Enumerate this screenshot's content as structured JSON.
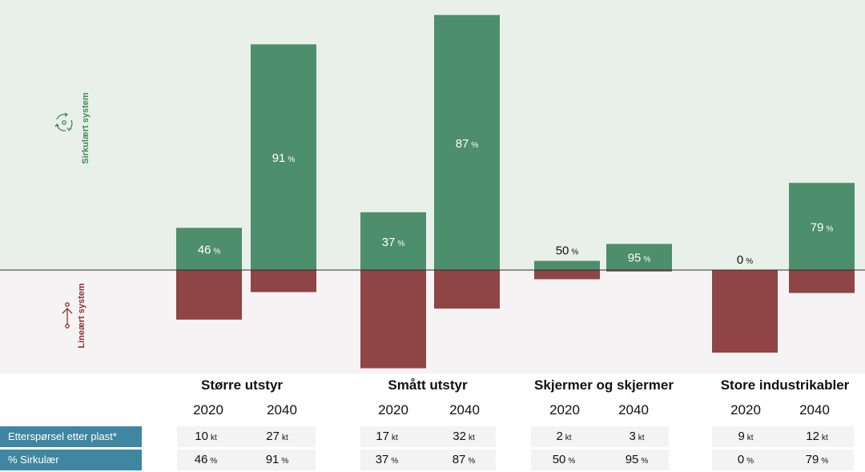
{
  "axis": {
    "top_label": "Sirkulært system",
    "bottom_label": "Lineært system"
  },
  "colors": {
    "circular": "#4d8e6c",
    "linear": "#8f4446",
    "top_bg": "#e9efe9",
    "bottom_bg": "#f6f3f4",
    "row_label_bg": "#3f86a0"
  },
  "icons": {
    "top": "recycle-circle-icon",
    "bottom": "linear-arrow-icon"
  },
  "chart_data": {
    "type": "bar",
    "stacked": "diverging",
    "categories": [
      "Større utstyr",
      "Smått utstyr",
      "Skjermer og skjermer",
      "Store industrikabler"
    ],
    "years": [
      "2020",
      "2040"
    ],
    "series": [
      {
        "name": "Sirkulær",
        "values": [
          [
            4.6,
            24.6
          ],
          [
            6.3,
            27.8
          ],
          [
            1.0,
            2.85
          ],
          [
            0.0,
            9.5
          ]
        ]
      },
      {
        "name": "Lineær",
        "values": [
          [
            5.4,
            2.4
          ],
          [
            10.7,
            4.2
          ],
          [
            1.0,
            0.15
          ],
          [
            9.0,
            2.5
          ]
        ]
      }
    ],
    "bar_labels": [
      [
        "46 %",
        "91 %"
      ],
      [
        "37 %",
        "87 %"
      ],
      [
        "50 %",
        "95 %"
      ],
      [
        "0 %",
        "79 %"
      ]
    ],
    "unit": "kt"
  },
  "table": {
    "rows": [
      {
        "label": "Etterspørsel etter plast*",
        "values": [
          [
            "10",
            "27"
          ],
          [
            "17",
            "32"
          ],
          [
            "2",
            "3"
          ],
          [
            "9",
            "12"
          ]
        ],
        "unit": "kt"
      },
      {
        "label": "% Sirkulær",
        "values": [
          [
            "46",
            "91"
          ],
          [
            "37",
            "87"
          ],
          [
            "50",
            "95"
          ],
          [
            "0",
            "79"
          ]
        ],
        "unit": "%"
      }
    ]
  }
}
